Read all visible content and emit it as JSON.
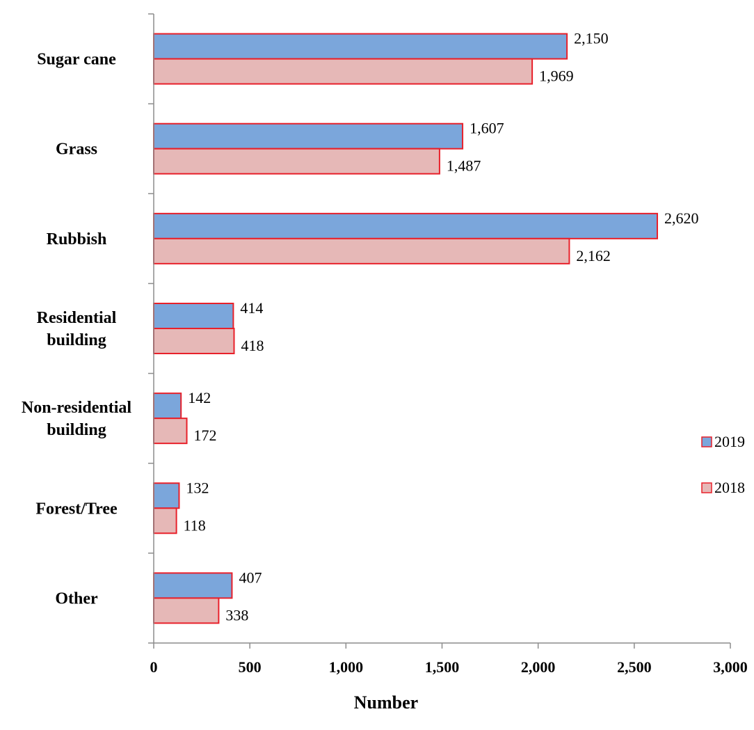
{
  "chart_data": {
    "type": "bar",
    "orientation": "horizontal",
    "categories": [
      "Sugar cane",
      "Grass",
      "Rubbish",
      "Residential building",
      "Non-residential building",
      "Forest/Tree",
      "Other"
    ],
    "series": [
      {
        "name": "2019",
        "values": [
          2150,
          1607,
          2620,
          414,
          142,
          132,
          407
        ],
        "labels": [
          "2,150",
          "1,607",
          "2,620",
          "414",
          "142",
          "132",
          "407"
        ],
        "color": "#7BA6DB"
      },
      {
        "name": "2018",
        "values": [
          1969,
          1487,
          2162,
          418,
          172,
          118,
          338
        ],
        "labels": [
          "1,969",
          "1,487",
          "2,162",
          "418",
          "172",
          "118",
          "338"
        ],
        "color": "#E6B8B7"
      }
    ],
    "bar_outline_color": "#E8202A",
    "xlim": [
      0,
      3000
    ],
    "xticks": [
      0,
      500,
      1000,
      1500,
      2000,
      2500,
      3000
    ],
    "xtick_labels": [
      "0",
      "500",
      "1,000",
      "1,500",
      "2,000",
      "2,500",
      "3,000"
    ],
    "xlabel": "Number",
    "ylabel": "",
    "legend_position": "right",
    "grid": false
  }
}
